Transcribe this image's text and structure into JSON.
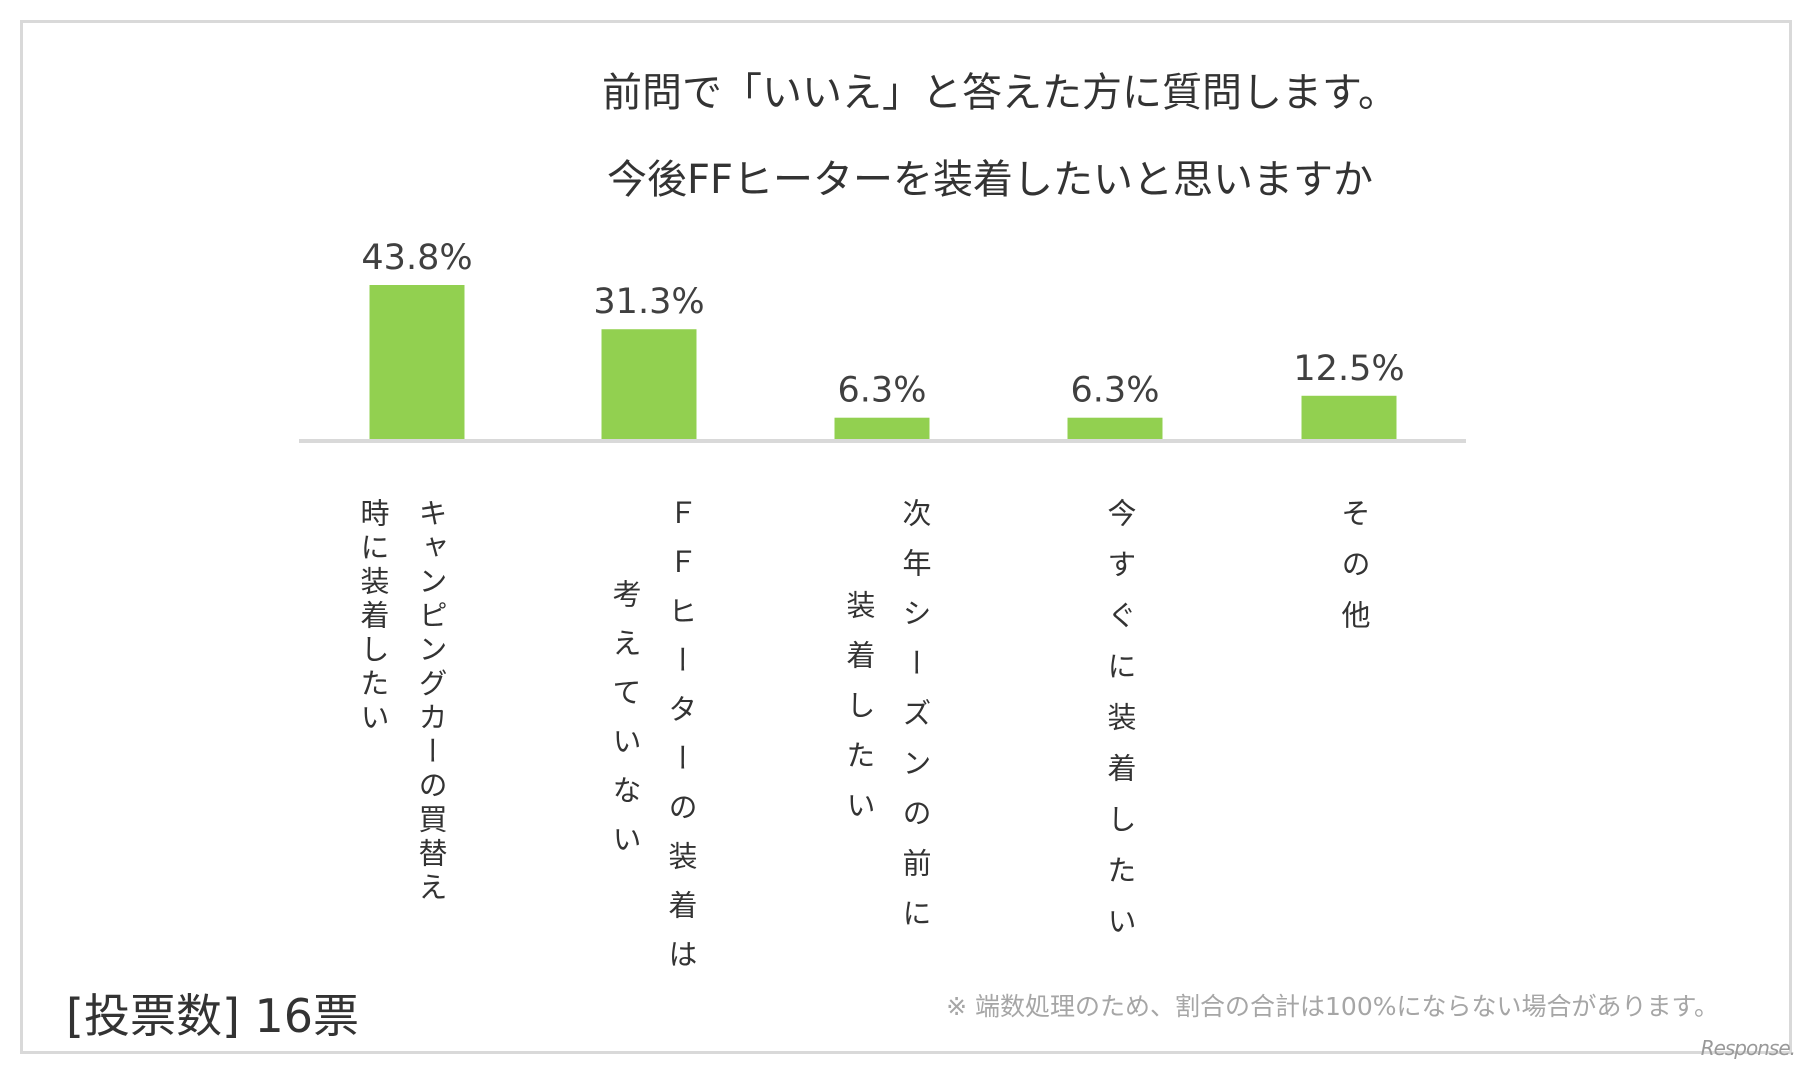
{
  "chart_data": {
    "type": "bar",
    "title": [
      "前問で「いいえ」と答えた方に質問します。",
      "今後FFヒーターを装着したいと思いますか"
    ],
    "categories": [
      [
        "キャンピングカーの買替え",
        "時に装着したい"
      ],
      [
        "ＦＦヒーターの装着は",
        "考えていない"
      ],
      [
        "次年シーズンの前に",
        "装着したい"
      ],
      [
        "今すぐに装着したい"
      ],
      [
        "その他"
      ]
    ],
    "values": [
      43.8,
      31.3,
      6.3,
      6.3,
      12.5
    ],
    "value_labels": [
      "43.8%",
      "31.3%",
      "6.3%",
      "6.3%",
      "12.5%"
    ],
    "unit": "%",
    "ylim": [
      0,
      43.8
    ],
    "grid": false,
    "bar_color": "#92d050",
    "axis_color": "#d9d9d9"
  },
  "footer": {
    "votes": "[投票数]  16票",
    "note": "※  端数処理のため、割合の合計は100%にならない場合があります。",
    "logo": "Response."
  }
}
